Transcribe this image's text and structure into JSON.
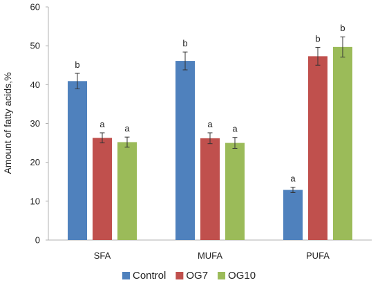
{
  "chart_data": {
    "type": "bar",
    "title": "",
    "xlabel": "",
    "ylabel": "Amount of fatty acids,%",
    "ylim": [
      0,
      60
    ],
    "yticks": [
      0,
      10,
      20,
      30,
      40,
      50,
      60
    ],
    "grid": false,
    "legend": "bottom",
    "categories": [
      "SFA",
      "MUFA",
      "PUFA"
    ],
    "series": [
      {
        "name": "Control",
        "color": "#4F81BD",
        "values": [
          40.9,
          46.1,
          12.9
        ],
        "errors": [
          2.0,
          2.3,
          0.7
        ],
        "labels": [
          "b",
          "b",
          "a"
        ]
      },
      {
        "name": "OG7",
        "color": "#C0504D",
        "values": [
          26.3,
          26.2,
          47.3
        ],
        "errors": [
          1.3,
          1.4,
          2.3
        ],
        "labels": [
          "a",
          "a",
          "b"
        ]
      },
      {
        "name": "OG10",
        "color": "#9BBB59",
        "values": [
          25.2,
          25.0,
          49.7
        ],
        "errors": [
          1.3,
          1.4,
          2.6
        ],
        "labels": [
          "a",
          "a",
          "b"
        ]
      }
    ]
  }
}
